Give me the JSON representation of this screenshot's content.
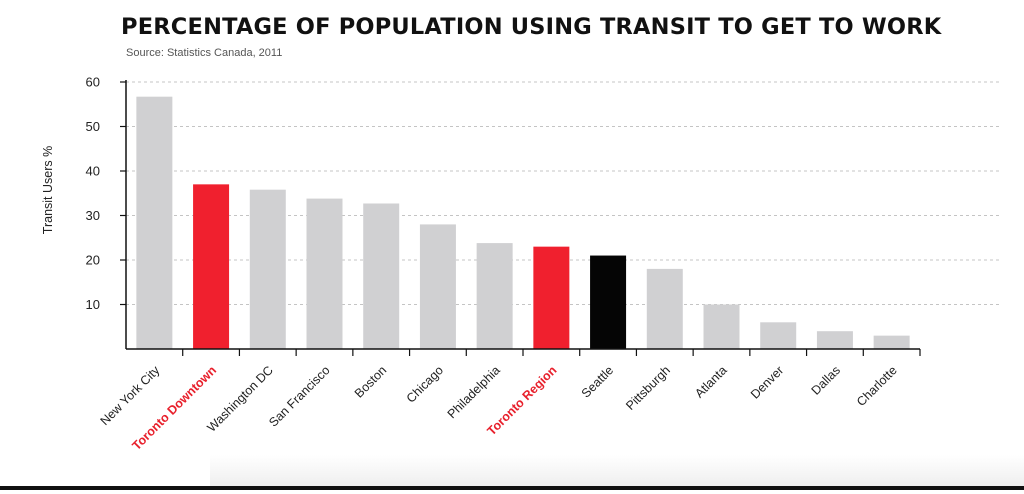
{
  "chart_data": {
    "type": "bar",
    "title": "PERCENTAGE OF POPULATION USING TRANSIT TO GET TO WORK",
    "source": "Source: Statistics Canada, 2011",
    "xlabel": "",
    "ylabel": "Transit Users %",
    "ylim": [
      0,
      60
    ],
    "yticks": [
      10,
      20,
      30,
      40,
      50,
      60
    ],
    "grid": true,
    "categories": [
      "New York City",
      "Toronto Downtown",
      "Washington DC",
      "San Francisco",
      "Boston",
      "Chicago",
      "Philadelphia",
      "Toronto Region",
      "Seattle",
      "Pittsburgh",
      "Atlanta",
      "Denver",
      "Dallas",
      "Charlotte"
    ],
    "values": [
      56.7,
      37,
      35.8,
      33.8,
      32.7,
      28,
      23.8,
      23,
      21,
      18,
      10,
      6,
      4,
      3
    ],
    "highlight": [
      "Toronto Downtown",
      "Toronto Region"
    ],
    "emphasis": [
      "Seattle"
    ]
  },
  "colors": {
    "bar": "#d0d0d2",
    "highlight": "#f0202e",
    "emphasis": "#050505",
    "highlight_label": "#e8202c",
    "label": "#222222",
    "grid": "#c4c4c4",
    "axis": "#111111"
  }
}
